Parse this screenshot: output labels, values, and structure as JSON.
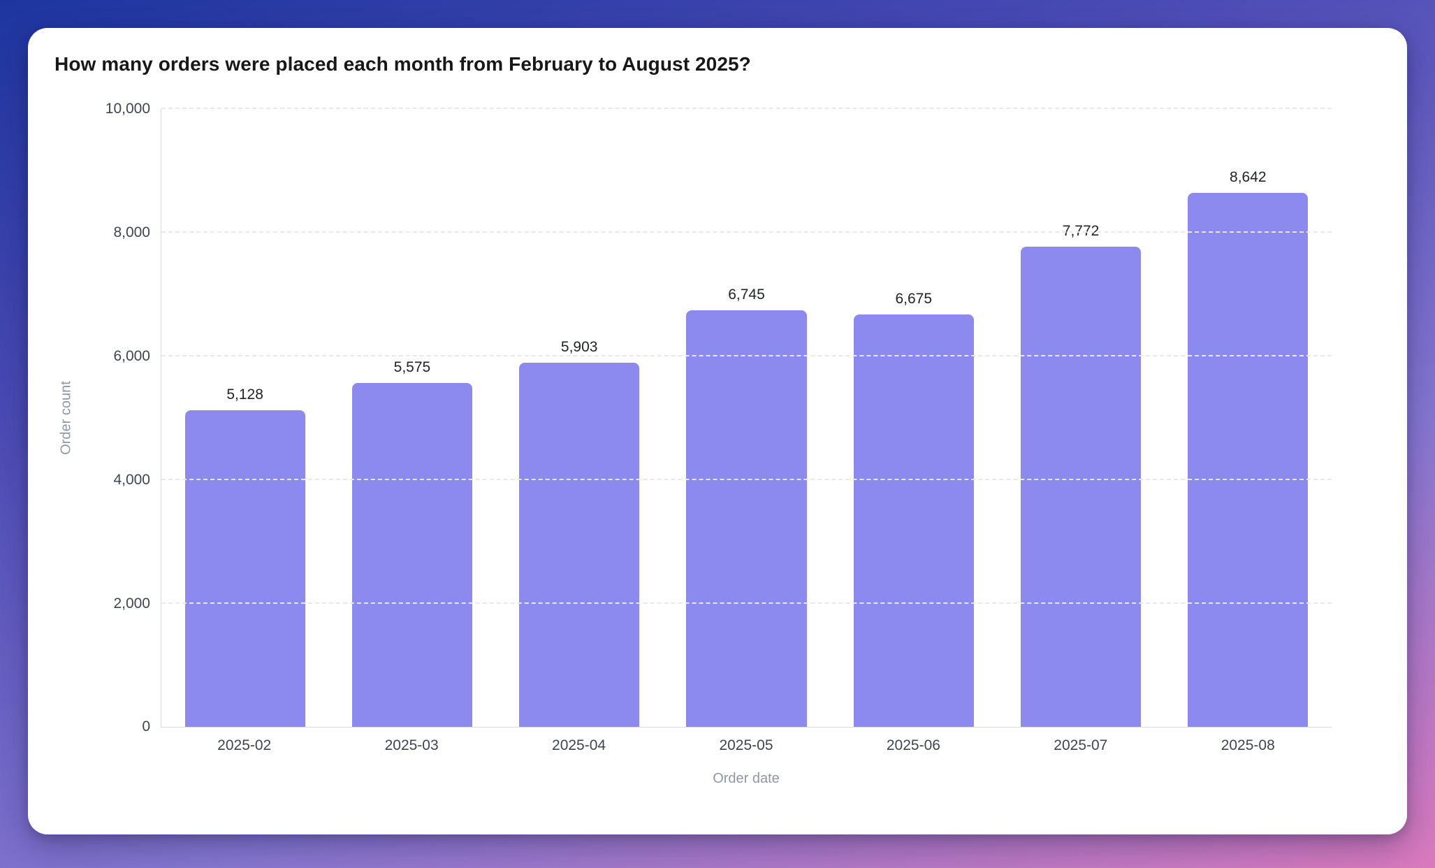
{
  "card": {
    "title": "How many orders were placed each month from February to August 2025?"
  },
  "chart_data": {
    "type": "bar",
    "title": "How many orders were placed each month from February to August 2025?",
    "categories": [
      "2025-02",
      "2025-03",
      "2025-04",
      "2025-05",
      "2025-06",
      "2025-07",
      "2025-08"
    ],
    "values": [
      5128,
      5575,
      5903,
      6745,
      6675,
      7772,
      8642
    ],
    "value_labels": [
      "5,128",
      "5,575",
      "5,903",
      "6,745",
      "6,675",
      "7,772",
      "8,642"
    ],
    "xlabel": "Order date",
    "ylabel": "Order count",
    "ylim": [
      0,
      10000
    ],
    "ytick_interval": 2000,
    "yticks": [
      "0",
      "2,000",
      "4,000",
      "6,000",
      "8,000",
      "10,000"
    ],
    "legend": "none",
    "grid": "horizontal-dashed",
    "bar_color": "#8c8aee"
  },
  "colors": {
    "background_gradient_corners": {
      "top_left": "#1d359f",
      "top_right": "#4a4ab4",
      "bottom_left": "#8677d1",
      "bottom_right": "#da79bd"
    },
    "card_background": "#ffffff",
    "bar": "#8c8aee",
    "title_text": "#18181b",
    "tick_text": "#3f444e",
    "axis_title_text": "#9097a3",
    "value_label_text": "#1f2127",
    "gridline": "#e7e8ec",
    "axis_line": "#d7d8dd"
  }
}
